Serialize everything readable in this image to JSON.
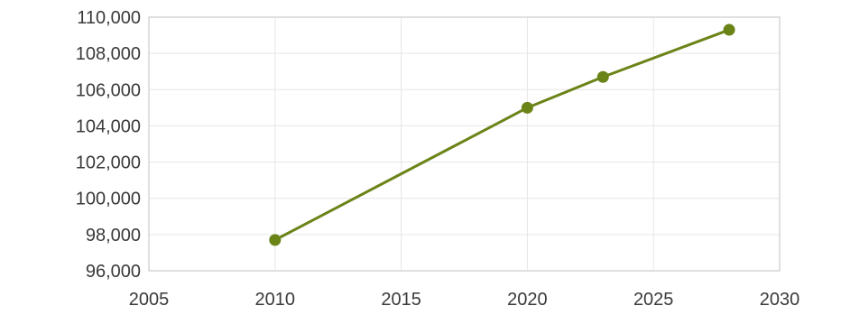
{
  "chart_data": {
    "type": "line",
    "title": "",
    "xlabel": "",
    "ylabel": "",
    "xlim": [
      2005,
      2030
    ],
    "ylim": [
      96000,
      110000
    ],
    "x_ticks": [
      2005,
      2010,
      2015,
      2020,
      2025,
      2030
    ],
    "x_tick_labels": [
      "2005",
      "2010",
      "2015",
      "2020",
      "2025",
      "2030"
    ],
    "y_ticks": [
      96000,
      98000,
      100000,
      102000,
      104000,
      106000,
      108000,
      110000
    ],
    "y_tick_labels": [
      "96,000",
      "98,000",
      "100,000",
      "102,000",
      "104,000",
      "106,000",
      "108,000",
      "110,000"
    ],
    "grid": true,
    "legend": "none",
    "series": [
      {
        "color": "#6b8418",
        "points": [
          {
            "x": 2010,
            "y": 97700
          },
          {
            "x": 2020,
            "y": 105000
          },
          {
            "x": 2023,
            "y": 106700
          },
          {
            "x": 2028,
            "y": 109300
          }
        ]
      }
    ]
  }
}
